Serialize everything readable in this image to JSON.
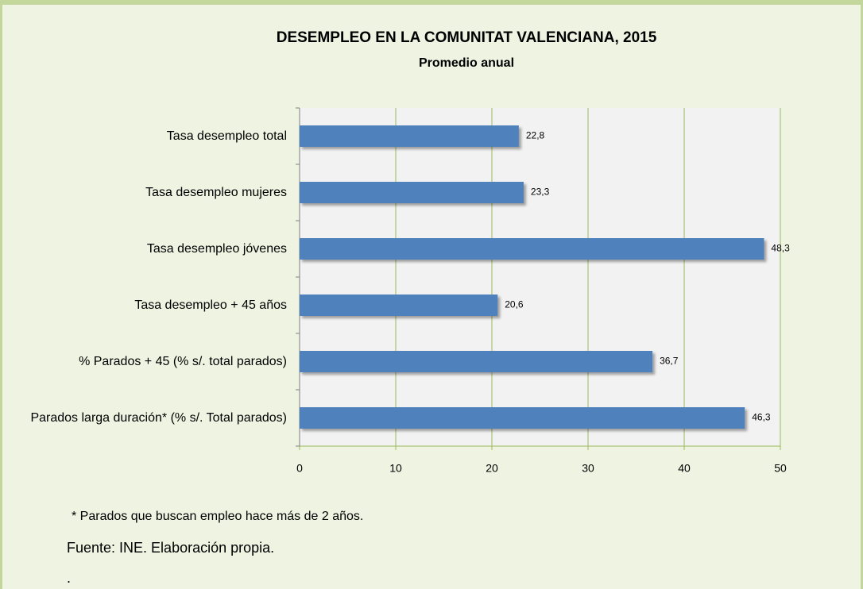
{
  "chart_data": {
    "type": "barh",
    "title": "DESEMPLEO EN LA COMUNITAT VALENCIANA, 2015",
    "subtitle": "Promedio anual",
    "categories": [
      "Tasa desempleo total",
      "Tasa desempleo mujeres",
      "Tasa desempleo jóvenes",
      "Tasa desempleo + 45 años",
      "% Parados + 45 (% s/. total parados)",
      "Parados larga duración* (% s/. Total parados)"
    ],
    "values": [
      22.8,
      23.3,
      48.3,
      20.6,
      36.7,
      46.3
    ],
    "value_labels": [
      "22,8",
      "23,3",
      "48,3",
      "20,6",
      "36,7",
      "46,3"
    ],
    "color": "#4f81bd",
    "xlim": [
      0,
      50
    ],
    "xticks": [
      0,
      10,
      20,
      30,
      40,
      50
    ],
    "grid": true,
    "notes": [
      "* Parados que buscan empleo hace más de 2 años.",
      "Fuente: INE. Elaboración propia.",
      "."
    ]
  }
}
